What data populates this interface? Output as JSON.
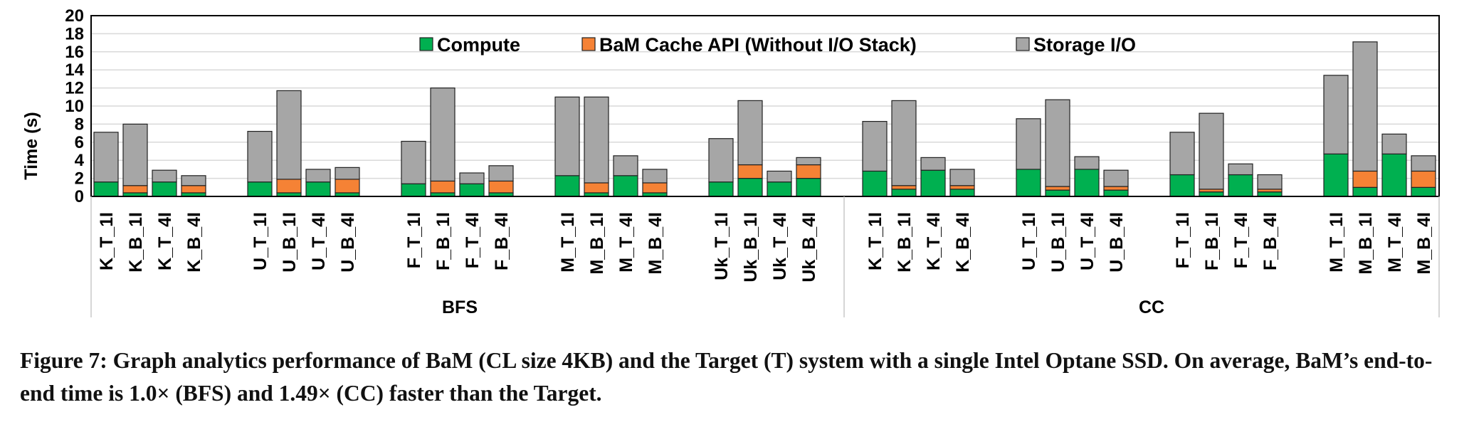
{
  "chart_data": {
    "type": "bar",
    "stacked": true,
    "ylabel": "Time (s)",
    "ylim": [
      0,
      20
    ],
    "yticks": [
      0,
      2,
      4,
      6,
      8,
      10,
      12,
      14,
      16,
      18,
      20
    ],
    "grid": true,
    "legend_placement": "top-center",
    "series": [
      {
        "name": "Compute",
        "color": "#00b050"
      },
      {
        "name": "BaM Cache API (Without I/O Stack)",
        "color": "#f58235"
      },
      {
        "name": "Storage I/O",
        "color": "#a6a6a6"
      }
    ],
    "groups": [
      {
        "label": "BFS",
        "subgroups": [
          {
            "bars": [
              {
                "label": "K_T_1I",
                "values": [
                  1.6,
                  0,
                  5.5
                ]
              },
              {
                "label": "K_B_1I",
                "values": [
                  0.4,
                  0.8,
                  6.8
                ]
              },
              {
                "label": "K_T_4I",
                "values": [
                  1.6,
                  0,
                  1.3
                ]
              },
              {
                "label": "K_B_4I",
                "values": [
                  0.4,
                  0.8,
                  1.1
                ]
              }
            ]
          },
          {
            "bars": [
              {
                "label": "U_T_1I",
                "values": [
                  1.6,
                  0,
                  5.6
                ]
              },
              {
                "label": "U_B_1I",
                "values": [
                  0.4,
                  1.5,
                  9.8
                ]
              },
              {
                "label": "U_T_4I",
                "values": [
                  1.6,
                  0,
                  1.4
                ]
              },
              {
                "label": "U_B_4I",
                "values": [
                  0.4,
                  1.5,
                  1.3
                ]
              }
            ]
          },
          {
            "bars": [
              {
                "label": "F_T_1I",
                "values": [
                  1.4,
                  0,
                  4.7
                ]
              },
              {
                "label": "F_B_1I",
                "values": [
                  0.4,
                  1.3,
                  10.3
                ]
              },
              {
                "label": "F_T_4I",
                "values": [
                  1.4,
                  0,
                  1.2
                ]
              },
              {
                "label": "F_B_4I",
                "values": [
                  0.4,
                  1.3,
                  1.7
                ]
              }
            ]
          },
          {
            "bars": [
              {
                "label": "M_T_1I",
                "values": [
                  2.3,
                  0,
                  8.7
                ]
              },
              {
                "label": "M_B_1I",
                "values": [
                  0.4,
                  1.1,
                  9.5
                ]
              },
              {
                "label": "M_T_4I",
                "values": [
                  2.3,
                  0,
                  2.2
                ]
              },
              {
                "label": "M_B_4I",
                "values": [
                  0.4,
                  1.1,
                  1.5
                ]
              }
            ]
          },
          {
            "bars": [
              {
                "label": "Uk_T_1I",
                "values": [
                  1.6,
                  0,
                  4.8
                ]
              },
              {
                "label": "Uk_B_1I",
                "values": [
                  2.0,
                  1.5,
                  7.1
                ]
              },
              {
                "label": "Uk_T_4I",
                "values": [
                  1.6,
                  0,
                  1.2
                ]
              },
              {
                "label": "Uk_B_4I",
                "values": [
                  2.0,
                  1.5,
                  0.8
                ]
              }
            ]
          }
        ]
      },
      {
        "label": "CC",
        "subgroups": [
          {
            "bars": [
              {
                "label": "K_T_1I",
                "values": [
                  2.8,
                  0,
                  5.5
                ]
              },
              {
                "label": "K_B_1I",
                "values": [
                  0.8,
                  0.4,
                  9.4
                ]
              },
              {
                "label": "K_T_4I",
                "values": [
                  2.9,
                  0,
                  1.4
                ]
              },
              {
                "label": "K_B_4I",
                "values": [
                  0.8,
                  0.4,
                  1.8
                ]
              }
            ]
          },
          {
            "bars": [
              {
                "label": "U_T_1I",
                "values": [
                  3.0,
                  0,
                  5.6
                ]
              },
              {
                "label": "U_B_1I",
                "values": [
                  0.7,
                  0.4,
                  9.6
                ]
              },
              {
                "label": "U_T_4I",
                "values": [
                  3.0,
                  0,
                  1.4
                ]
              },
              {
                "label": "U_B_4I",
                "values": [
                  0.7,
                  0.4,
                  1.8
                ]
              }
            ]
          },
          {
            "bars": [
              {
                "label": "F_T_1I",
                "values": [
                  2.4,
                  0,
                  4.7
                ]
              },
              {
                "label": "F_B_1I",
                "values": [
                  0.5,
                  0.3,
                  8.4
                ]
              },
              {
                "label": "F_T_4I",
                "values": [
                  2.4,
                  0,
                  1.2
                ]
              },
              {
                "label": "F_B_4I",
                "values": [
                  0.5,
                  0.3,
                  1.6
                ]
              }
            ]
          },
          {
            "bars": [
              {
                "label": "M_T_1I",
                "values": [
                  4.7,
                  0,
                  8.7
                ]
              },
              {
                "label": "M_B_1I",
                "values": [
                  1.0,
                  1.8,
                  14.3
                ]
              },
              {
                "label": "M_T_4I",
                "values": [
                  4.7,
                  0,
                  2.2
                ]
              },
              {
                "label": "M_B_4I",
                "values": [
                  1.0,
                  1.8,
                  1.7
                ]
              }
            ]
          }
        ]
      }
    ]
  },
  "caption": "Figure 7: Graph analytics performance of BaM (CL size 4KB) and the Target (T) system with a single Intel Optane SSD. On average, BaM’s end-to-end time is 1.0× (BFS) and 1.49× (CC) faster than the Target."
}
